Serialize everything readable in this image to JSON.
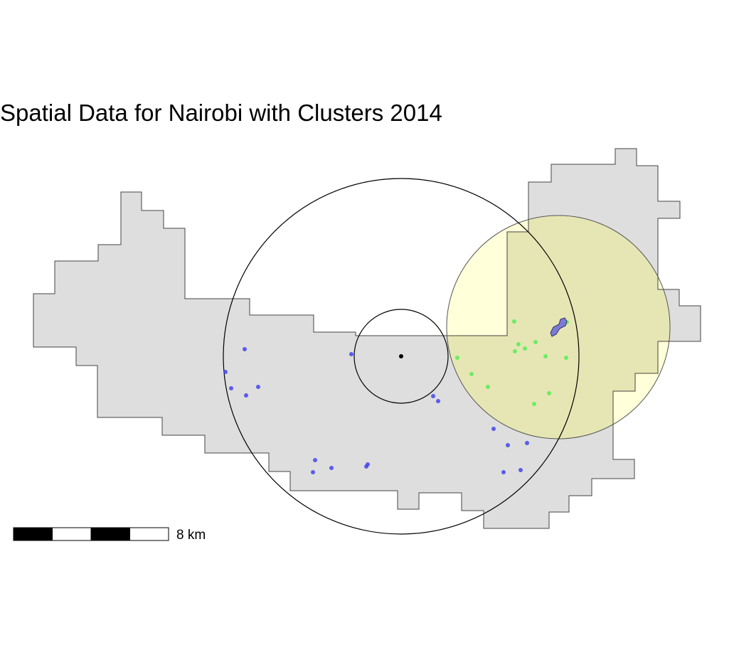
{
  "map": {
    "title": "Spatial Data for Nairobi with Clusters 2014",
    "scale_bar": {
      "label": "8 km",
      "segments": 4,
      "colors": [
        "#000000",
        "#ffffff",
        "#000000",
        "#ffffff"
      ]
    },
    "colors": {
      "region_fill": "#dedede",
      "region_stroke": "#444444",
      "cluster_fill": "#ffffd9",
      "cluster_overlay_fill": "#b8b870",
      "group_a_points": "#4444ee",
      "group_b_points": "#55ee55",
      "hotspot_fill": "#7b7bd6",
      "center_point": "#000000"
    },
    "layers": [
      {
        "id": "region",
        "description_visible": false
      },
      {
        "id": "large-buffer-circle"
      },
      {
        "id": "small-buffer-circle"
      },
      {
        "id": "cluster-circle"
      },
      {
        "id": "blue-points",
        "count": 20
      },
      {
        "id": "green-points",
        "count": 15
      },
      {
        "id": "hotspot-polygon"
      },
      {
        "id": "center-point"
      }
    ]
  }
}
